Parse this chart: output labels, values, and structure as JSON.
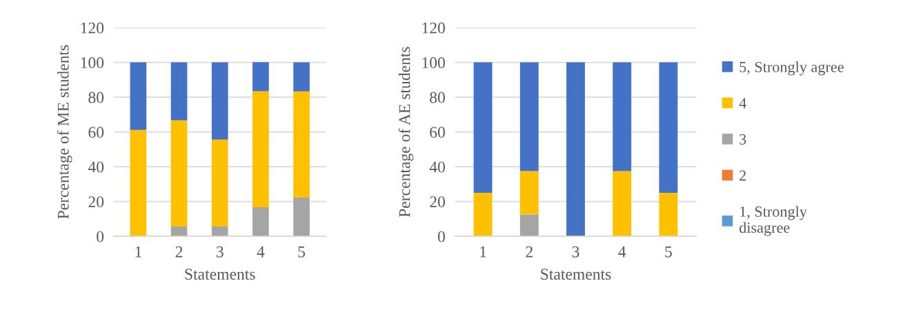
{
  "chart_data": [
    {
      "type": "bar",
      "stacked": true,
      "xlabel": "Statements",
      "ylabel": "Percentage of ME students",
      "categories": [
        "1",
        "2",
        "3",
        "4",
        "5"
      ],
      "ylim": [
        0,
        120
      ],
      "yticks": [
        0,
        20,
        40,
        60,
        80,
        100,
        120
      ],
      "grid": "y",
      "legend": false,
      "series": [
        {
          "color": "#5b9bd5",
          "values": [
            0,
            0,
            0,
            0,
            0
          ]
        },
        {
          "color": "#ed7d31",
          "values": [
            0,
            0,
            0,
            0,
            0
          ]
        },
        {
          "color": "#a5a5a5",
          "values": [
            0,
            5.6,
            5.6,
            16.7,
            22.2
          ]
        },
        {
          "color": "#ffc000",
          "values": [
            61.1,
            61.1,
            50,
            66.7,
            61.1
          ]
        },
        {
          "color": "#4472c4",
          "values": [
            38.9,
            33.3,
            44.4,
            16.7,
            16.7
          ]
        }
      ]
    },
    {
      "type": "bar",
      "stacked": true,
      "xlabel": "Statements",
      "ylabel": "Percentage of AE students",
      "categories": [
        "1",
        "2",
        "3",
        "4",
        "5"
      ],
      "ylim": [
        0,
        120
      ],
      "yticks": [
        0,
        20,
        40,
        60,
        80,
        100,
        120
      ],
      "grid": "y",
      "legend": "right",
      "series": [
        {
          "name": "1, Strongly\ndisagree",
          "color": "#5b9bd5",
          "values": [
            0,
            0,
            0,
            0,
            0
          ]
        },
        {
          "name": "2",
          "color": "#ed7d31",
          "values": [
            0,
            0,
            0,
            0,
            0
          ]
        },
        {
          "name": "3",
          "color": "#a5a5a5",
          "values": [
            0,
            12.5,
            0,
            0,
            0
          ]
        },
        {
          "name": "4",
          "color": "#ffc000",
          "values": [
            25,
            25,
            0,
            37.5,
            25
          ]
        },
        {
          "name": "5, Strongly agree",
          "color": "#4472c4",
          "values": [
            75,
            62.5,
            100,
            62.5,
            75
          ]
        }
      ]
    }
  ]
}
